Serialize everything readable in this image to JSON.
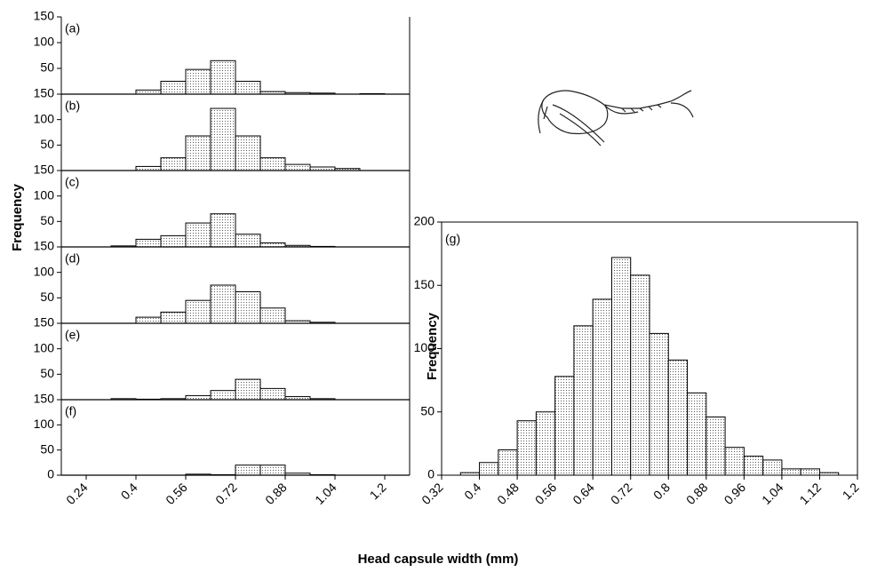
{
  "shared": {
    "ylabel": "Frequency",
    "xlabel": "Head capsule width (mm)"
  },
  "chart_data": [
    {
      "type": "histogram",
      "label": "(a)",
      "bins": [
        0.32,
        0.4,
        0.48,
        0.56,
        0.64,
        0.72,
        0.8,
        0.88,
        0.96,
        1.04,
        1.12,
        1.2
      ],
      "values": [
        0,
        8,
        25,
        48,
        65,
        25,
        5,
        3,
        2,
        0,
        1
      ],
      "xlim": [
        0.16,
        1.28
      ],
      "ylim": [
        0,
        150
      ],
      "yticks": [
        50,
        100,
        150
      ]
    },
    {
      "type": "histogram",
      "label": "(b)",
      "bins": [
        0.32,
        0.4,
        0.48,
        0.56,
        0.64,
        0.72,
        0.8,
        0.88,
        0.96,
        1.04,
        1.12,
        1.2
      ],
      "values": [
        0,
        8,
        25,
        68,
        122,
        68,
        25,
        12,
        7,
        4,
        0
      ],
      "xlim": [
        0.16,
        1.28
      ],
      "ylim": [
        0,
        150
      ],
      "yticks": [
        50,
        100,
        150
      ]
    },
    {
      "type": "histogram",
      "label": "(c)",
      "bins": [
        0.32,
        0.4,
        0.48,
        0.56,
        0.64,
        0.72,
        0.8,
        0.88,
        0.96,
        1.04,
        1.12,
        1.2
      ],
      "values": [
        2,
        15,
        22,
        47,
        65,
        25,
        8,
        3,
        1,
        0,
        0
      ],
      "xlim": [
        0.16,
        1.28
      ],
      "ylim": [
        0,
        150
      ],
      "yticks": [
        50,
        100,
        150
      ]
    },
    {
      "type": "histogram",
      "label": "(d)",
      "bins": [
        0.32,
        0.4,
        0.48,
        0.56,
        0.64,
        0.72,
        0.8,
        0.88,
        0.96,
        1.04,
        1.12,
        1.2
      ],
      "values": [
        0,
        12,
        22,
        45,
        75,
        62,
        30,
        5,
        2,
        0,
        0
      ],
      "xlim": [
        0.16,
        1.28
      ],
      "ylim": [
        0,
        150
      ],
      "yticks": [
        50,
        100,
        150
      ]
    },
    {
      "type": "histogram",
      "label": "(e)",
      "bins": [
        0.32,
        0.4,
        0.48,
        0.56,
        0.64,
        0.72,
        0.8,
        0.88,
        0.96,
        1.04,
        1.12,
        1.2
      ],
      "values": [
        2,
        1,
        2,
        8,
        18,
        40,
        22,
        6,
        2,
        0,
        0
      ],
      "xlim": [
        0.16,
        1.28
      ],
      "ylim": [
        0,
        150
      ],
      "yticks": [
        50,
        100,
        150
      ]
    },
    {
      "type": "histogram",
      "label": "(f)",
      "bins": [
        0.32,
        0.4,
        0.48,
        0.56,
        0.64,
        0.72,
        0.8,
        0.88,
        0.96,
        1.04,
        1.12,
        1.2
      ],
      "values": [
        0,
        0,
        0,
        2,
        1,
        20,
        20,
        4,
        1,
        0,
        0
      ],
      "xlim": [
        0.16,
        1.28
      ],
      "xticks": [
        0.24,
        0.4,
        0.56,
        0.72,
        0.88,
        1.04,
        1.2
      ],
      "ylim": [
        0,
        150
      ],
      "yticks": [
        0,
        50,
        100,
        150
      ]
    },
    {
      "type": "histogram",
      "label": "(g)",
      "ylabel": "Frequency",
      "bins": [
        0.36,
        0.4,
        0.44,
        0.48,
        0.52,
        0.56,
        0.6,
        0.64,
        0.68,
        0.72,
        0.76,
        0.8,
        0.84,
        0.88,
        0.92,
        0.96,
        1.0,
        1.04,
        1.08,
        1.12,
        1.16
      ],
      "values": [
        2,
        10,
        20,
        43,
        50,
        78,
        118,
        139,
        172,
        158,
        112,
        91,
        65,
        46,
        22,
        15,
        12,
        5,
        5,
        2
      ],
      "xlim": [
        0.32,
        1.2
      ],
      "xticks": [
        0.32,
        0.4,
        0.48,
        0.56,
        0.64,
        0.72,
        0.8,
        0.88,
        0.96,
        1.04,
        1.12,
        1.2
      ],
      "ylim": [
        0,
        200
      ],
      "yticks": [
        0,
        50,
        100,
        150,
        200
      ]
    }
  ]
}
